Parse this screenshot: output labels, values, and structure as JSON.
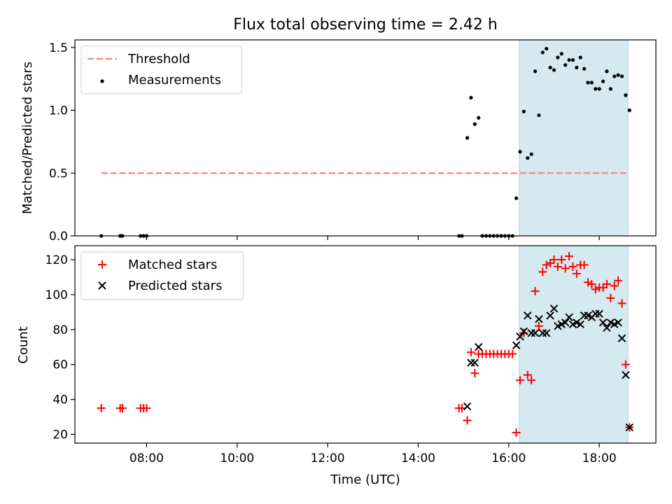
{
  "chart_data": [
    {
      "type": "scatter",
      "panel": "top",
      "title": "Flux total observing time = 2.42 h",
      "ylabel": "Matched/Predicted stars",
      "xlabel": "",
      "xlim": [
        "06:25",
        "19:15"
      ],
      "ylim": [
        0,
        1.56
      ],
      "yticks": [
        0.0,
        0.5,
        1.0,
        1.5
      ],
      "ytick_labels": [
        "0.0",
        "0.5",
        "1.0",
        "1.5"
      ],
      "highlight_span": {
        "start": "16:14",
        "end": "18:38",
        "color": "#d4eaf0"
      },
      "legend_position": "upper-left",
      "threshold": {
        "name": "Threshold",
        "value": 0.5,
        "x_start": "07:00",
        "x_end": "18:40",
        "color": "#ff7f7f"
      },
      "series": [
        {
          "name": "Measurements",
          "color": "#000000",
          "points": [
            [
              "07:00",
              0
            ],
            [
              "07:25",
              0
            ],
            [
              "07:28",
              0
            ],
            [
              "07:52",
              0
            ],
            [
              "07:56",
              0
            ],
            [
              "08:00",
              0
            ],
            [
              "14:54",
              0
            ],
            [
              "14:58",
              0
            ],
            [
              "15:05",
              0.78
            ],
            [
              "15:10",
              1.1
            ],
            [
              "15:15",
              0.89
            ],
            [
              "15:20",
              0.94
            ],
            [
              "15:25",
              0
            ],
            [
              "15:30",
              0
            ],
            [
              "15:35",
              0
            ],
            [
              "15:40",
              0
            ],
            [
              "15:45",
              0
            ],
            [
              "15:50",
              0
            ],
            [
              "15:55",
              0
            ],
            [
              "16:00",
              0
            ],
            [
              "16:05",
              0
            ],
            [
              "16:10",
              0.3
            ],
            [
              "16:15",
              0.67
            ],
            [
              "16:20",
              0.99
            ],
            [
              "16:25",
              0.62
            ],
            [
              "16:30",
              0.65
            ],
            [
              "16:35",
              1.31
            ],
            [
              "16:40",
              0.96
            ],
            [
              "16:45",
              1.46
            ],
            [
              "16:50",
              1.49
            ],
            [
              "16:55",
              1.34
            ],
            [
              "17:00",
              1.32
            ],
            [
              "17:05",
              1.42
            ],
            [
              "17:10",
              1.45
            ],
            [
              "17:15",
              1.36
            ],
            [
              "17:20",
              1.4
            ],
            [
              "17:25",
              1.4
            ],
            [
              "17:30",
              1.34
            ],
            [
              "17:35",
              1.42
            ],
            [
              "17:40",
              1.33
            ],
            [
              "17:45",
              1.22
            ],
            [
              "17:50",
              1.22
            ],
            [
              "17:55",
              1.17
            ],
            [
              "18:00",
              1.17
            ],
            [
              "18:05",
              1.23
            ],
            [
              "18:10",
              1.31
            ],
            [
              "18:15",
              1.17
            ],
            [
              "18:20",
              1.27
            ],
            [
              "18:25",
              1.28
            ],
            [
              "18:30",
              1.27
            ],
            [
              "18:35",
              1.12
            ],
            [
              "18:40",
              1.0
            ]
          ]
        }
      ]
    },
    {
      "type": "scatter",
      "panel": "bottom",
      "title": "",
      "ylabel": "Count",
      "xlabel": "Time (UTC)",
      "xlim": [
        "06:25",
        "19:15"
      ],
      "ylim": [
        15,
        128
      ],
      "yticks": [
        20,
        40,
        60,
        80,
        100,
        120
      ],
      "ytick_labels": [
        "20",
        "40",
        "60",
        "80",
        "100",
        "120"
      ],
      "xticks": [
        "08:00",
        "10:00",
        "12:00",
        "14:00",
        "16:00",
        "18:00"
      ],
      "highlight_span": {
        "start": "16:14",
        "end": "18:38",
        "color": "#d4eaf0"
      },
      "legend_position": "upper-left",
      "series": [
        {
          "name": "Matched stars",
          "marker": "plus",
          "color": "#ff0000",
          "points": [
            [
              "07:00",
              35
            ],
            [
              "07:25",
              35
            ],
            [
              "07:28",
              35
            ],
            [
              "07:52",
              35
            ],
            [
              "07:56",
              35
            ],
            [
              "08:00",
              35
            ],
            [
              "14:54",
              35
            ],
            [
              "14:58",
              35
            ],
            [
              "15:05",
              28
            ],
            [
              "15:10",
              67
            ],
            [
              "15:15",
              55
            ],
            [
              "15:20",
              66
            ],
            [
              "15:25",
              66
            ],
            [
              "15:30",
              66
            ],
            [
              "15:35",
              66
            ],
            [
              "15:40",
              66
            ],
            [
              "15:45",
              66
            ],
            [
              "15:50",
              66
            ],
            [
              "15:55",
              66
            ],
            [
              "16:00",
              66
            ],
            [
              "16:05",
              66
            ],
            [
              "16:10",
              21
            ],
            [
              "16:15",
              51
            ],
            [
              "16:20",
              78
            ],
            [
              "16:25",
              54
            ],
            [
              "16:30",
              51
            ],
            [
              "16:35",
              102
            ],
            [
              "16:40",
              82
            ],
            [
              "16:45",
              113
            ],
            [
              "16:50",
              117
            ],
            [
              "16:55",
              118
            ],
            [
              "17:00",
              120
            ],
            [
              "17:05",
              116
            ],
            [
              "17:10",
              120
            ],
            [
              "17:15",
              115
            ],
            [
              "17:20",
              122
            ],
            [
              "17:25",
              116
            ],
            [
              "17:30",
              112
            ],
            [
              "17:35",
              117
            ],
            [
              "17:40",
              117
            ],
            [
              "17:45",
              107
            ],
            [
              "17:50",
              106
            ],
            [
              "17:55",
              103
            ],
            [
              "18:00",
              104
            ],
            [
              "18:05",
              104
            ],
            [
              "18:10",
              106
            ],
            [
              "18:15",
              98
            ],
            [
              "18:20",
              105
            ],
            [
              "18:25",
              108
            ],
            [
              "18:30",
              95
            ],
            [
              "18:35",
              60
            ],
            [
              "18:40",
              24
            ]
          ]
        },
        {
          "name": "Predicted stars",
          "marker": "x",
          "color": "#000000",
          "points": [
            [
              "15:05",
              36
            ],
            [
              "15:10",
              61
            ],
            [
              "15:15",
              61
            ],
            [
              "15:20",
              70
            ],
            [
              "16:10",
              71
            ],
            [
              "16:15",
              76
            ],
            [
              "16:20",
              79
            ],
            [
              "16:25",
              88
            ],
            [
              "16:30",
              78
            ],
            [
              "16:35",
              78
            ],
            [
              "16:40",
              86
            ],
            [
              "16:45",
              78
            ],
            [
              "16:50",
              78
            ],
            [
              "16:55",
              88
            ],
            [
              "17:00",
              92
            ],
            [
              "17:05",
              82
            ],
            [
              "17:10",
              83
            ],
            [
              "17:15",
              84
            ],
            [
              "17:20",
              87
            ],
            [
              "17:25",
              83
            ],
            [
              "17:30",
              84
            ],
            [
              "17:35",
              83
            ],
            [
              "17:40",
              88
            ],
            [
              "17:45",
              88
            ],
            [
              "17:50",
              87
            ],
            [
              "17:55",
              89
            ],
            [
              "18:00",
              89
            ],
            [
              "18:05",
              84
            ],
            [
              "18:10",
              81
            ],
            [
              "18:15",
              84
            ],
            [
              "18:20",
              83
            ],
            [
              "18:25",
              84
            ],
            [
              "18:30",
              75
            ],
            [
              "18:35",
              54
            ],
            [
              "18:40",
              24
            ]
          ]
        }
      ]
    }
  ]
}
